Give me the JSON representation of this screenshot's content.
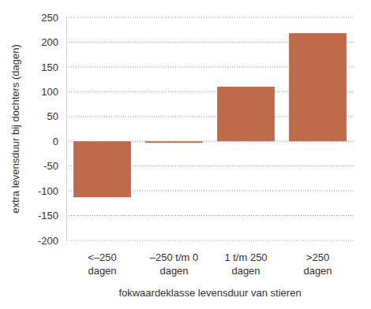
{
  "chart_data": {
    "type": "bar",
    "categories": [
      "<–250 dagen",
      "–250 t/m 0 dagen",
      "1 t/m 250 dagen",
      ">250 dagen"
    ],
    "values": [
      -113,
      -3,
      110,
      218
    ],
    "color": "#bf6a4b",
    "xlabel": "fokwaardeklasse levensduur van stieren",
    "ylabel": "extra levensduur bij dochters (dagen)",
    "ylim": [
      -200,
      250
    ],
    "yticks": [
      -200,
      -150,
      -100,
      -50,
      0,
      50,
      100,
      150,
      200,
      250
    ],
    "grid": true
  }
}
